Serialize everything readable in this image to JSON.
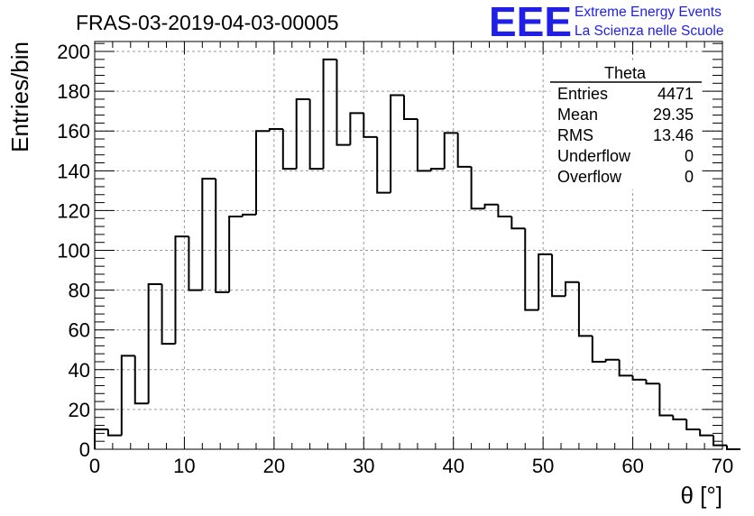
{
  "header": {
    "run_title": "FRAS-03-2019-04-03-00005",
    "logo_text": "EEE",
    "org_line1": "Extreme Energy Events",
    "org_line2": "La Scienza nelle Scuole",
    "logo_color": "#1f1fe8"
  },
  "stats_box": {
    "name": "Theta",
    "rows": [
      {
        "label": "Entries",
        "value": "4471"
      },
      {
        "label": "Mean",
        "value": "29.35"
      },
      {
        "label": "RMS",
        "value": "13.46"
      },
      {
        "label": "Underflow",
        "value": "0"
      },
      {
        "label": "Overflow",
        "value": "0"
      }
    ]
  },
  "chart_data": {
    "type": "bar",
    "style": "step-histogram",
    "title": "FRAS-03-2019-04-03-00005",
    "xlabel": "θ [°]",
    "ylabel": "Entries/bin",
    "xlim": [
      0,
      70
    ],
    "ylim": [
      0,
      205
    ],
    "bin_width": 1.5,
    "x_ticks": [
      0,
      10,
      20,
      30,
      40,
      50,
      60,
      70
    ],
    "y_ticks": [
      0,
      20,
      40,
      60,
      80,
      100,
      120,
      140,
      160,
      180,
      200
    ],
    "grid": true,
    "legend": "top-right",
    "series": [
      {
        "name": "Theta",
        "bin_edges_start": 0,
        "values": [
          10,
          7,
          47,
          23,
          83,
          53,
          107,
          80,
          136,
          79,
          117,
          118,
          160,
          161,
          141,
          176,
          141,
          196,
          153,
          169,
          157,
          129,
          178,
          166,
          140,
          141,
          159,
          142,
          121,
          123,
          117,
          111,
          70,
          98,
          77,
          84,
          57,
          44,
          45,
          37,
          35,
          33,
          17,
          15,
          10,
          7,
          2,
          0
        ]
      }
    ]
  }
}
